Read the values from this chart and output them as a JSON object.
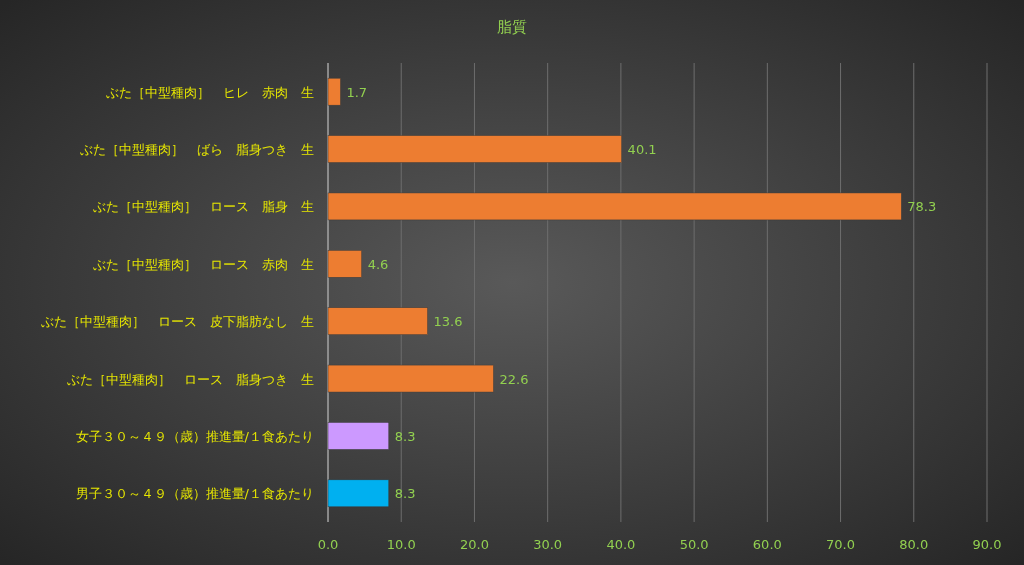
{
  "chart_data": {
    "type": "bar",
    "orientation": "horizontal",
    "title": "脂質",
    "categories": [
      "ぶた［中型種肉］　ヒレ　赤肉　生",
      "ぶた［中型種肉］　ばら　脂身つき　生",
      "ぶた［中型種肉］　ロース　脂身　生",
      "ぶた［中型種肉］　ロース　赤肉　生",
      "ぶた［中型種肉］　ロース　皮下脂肪なし　生",
      "ぶた［中型種肉］　ロース　脂身つき　生",
      "女子３０～４９（歳）推進量/１食あたり",
      "男子３０～４９（歳）推進量/１食あたり"
    ],
    "values": [
      1.7,
      40.1,
      78.3,
      4.6,
      13.6,
      22.6,
      8.3,
      8.3
    ],
    "colors": [
      "#ed7d31",
      "#ed7d31",
      "#ed7d31",
      "#ed7d31",
      "#ed7d31",
      "#ed7d31",
      "#cc99ff",
      "#00b0f0"
    ],
    "xlim": [
      0,
      90
    ],
    "xticks": [
      {
        "value": 0,
        "label": "0.0"
      },
      {
        "value": 10,
        "label": "10.0"
      },
      {
        "value": 20,
        "label": "20.0"
      },
      {
        "value": 30,
        "label": "30.0"
      },
      {
        "value": 40,
        "label": "40.0"
      },
      {
        "value": 50,
        "label": "50.0"
      },
      {
        "value": 60,
        "label": "60.0"
      },
      {
        "value": 70,
        "label": "70.0"
      },
      {
        "value": 80,
        "label": "80.0"
      },
      {
        "value": 90,
        "label": "90.0"
      }
    ],
    "grid": "x",
    "data_labels": true
  }
}
